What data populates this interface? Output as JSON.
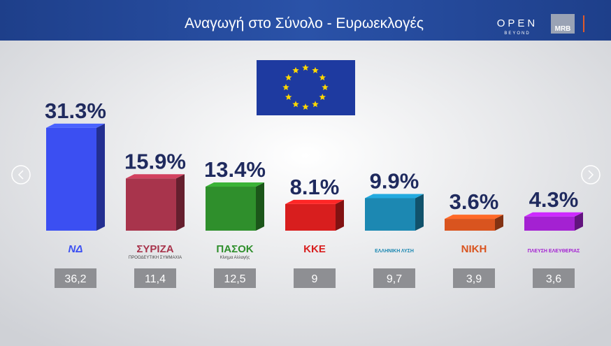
{
  "header": {
    "title": "Αναγωγή στο Σύνολο - Ευρωεκλογές",
    "brand": "OPEN",
    "brand_sub": "BEYOND",
    "partner": "MRB"
  },
  "chart_data": {
    "type": "bar",
    "categories": [
      "ΝΔ",
      "ΣΥΡΙΖΑ",
      "ΠΑΣΟΚ",
      "ΚΚΕ",
      "ΕΛΛΗΝΙΚΗ ΛΥΣΗ",
      "ΝΙΚΗ",
      "ΠΛΕΥΣΗ ΕΛΕΥΘΕΡΙΑΣ"
    ],
    "category_subtitles": [
      null,
      "ΠΡΟΟΔΕΥΤΙΚΗ ΣΥΜΜΑΧΙΑ",
      "Κίνημα Αλλαγής",
      null,
      null,
      null,
      null
    ],
    "values": [
      31.3,
      15.9,
      13.4,
      8.1,
      9.9,
      3.6,
      4.3
    ],
    "value_labels": [
      "31.3%",
      "15.9%",
      "13.4%",
      "8.1%",
      "9.9%",
      "3.6%",
      "4.3%"
    ],
    "colors": [
      "#3b4ff2",
      "#a8344c",
      "#2f8f2c",
      "#d81e1e",
      "#1c88b2",
      "#d9541f",
      "#a421d2"
    ],
    "previous": {
      "values": [
        36.2,
        11.4,
        12.5,
        9,
        9.7,
        3.9,
        3.6
      ],
      "value_labels": [
        "36,2",
        "11,4",
        "12,5",
        "9",
        "9,7",
        "3,9",
        "3,6"
      ]
    }
  }
}
